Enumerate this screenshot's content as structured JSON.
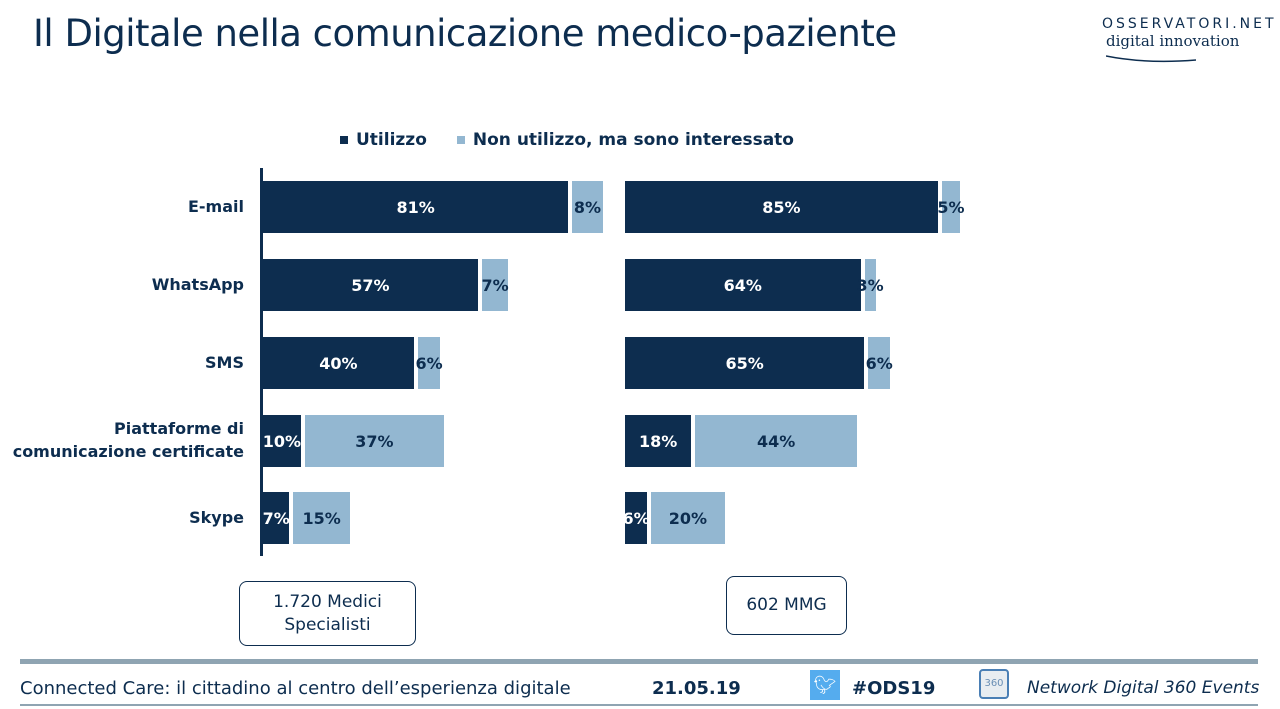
{
  "title": "Il Digitale nella comunicazione medico-paziente",
  "logo": {
    "line1": "OSSERVATORI.NET",
    "line2": "digital innovation"
  },
  "colors": {
    "utilizzo": "#0d2d4f",
    "interessato": "#93b7d1"
  },
  "chart_data": [
    {
      "type": "bar",
      "stacked": true,
      "orientation": "horizontal",
      "sample": "1.720 Medici Specialisti",
      "categories": [
        "E-mail",
        "WhatsApp",
        "SMS",
        "Piattaforme di comunicazione certificate",
        "Skype"
      ],
      "series": [
        {
          "name": "Utilizzo",
          "values": [
            81,
            57,
            40,
            10,
            7
          ]
        },
        {
          "name": "Non utilizzo, ma sono interessato",
          "values": [
            8,
            7,
            6,
            37,
            15
          ]
        }
      ],
      "xlim": [
        0,
        100
      ]
    },
    {
      "type": "bar",
      "stacked": true,
      "orientation": "horizontal",
      "sample": "602 MMG",
      "categories": [
        "E-mail",
        "WhatsApp",
        "SMS",
        "Piattaforme di comunicazione certificate",
        "Skype"
      ],
      "series": [
        {
          "name": "Utilizzo",
          "values": [
            85,
            64,
            65,
            18,
            6
          ]
        },
        {
          "name": "Non utilizzo, ma sono interessato",
          "values": [
            5,
            3,
            6,
            44,
            20
          ]
        }
      ],
      "xlim": [
        0,
        100
      ]
    }
  ],
  "legend": [
    "Utilizzo",
    "Non utilizzo, ma sono interessato"
  ],
  "categories_display": [
    "E-mail",
    "WhatsApp",
    "SMS",
    "Piattaforme di",
    "comunicazione certificate",
    "Skype"
  ],
  "samples": {
    "left_1": "1.720 Medici",
    "left_2": "Specialisti",
    "right": "602 MMG"
  },
  "footer": {
    "event": "Connected Care: il cittadino al centro dell’esperienza digitale",
    "date": "21.05.19",
    "hashtag": "#ODS19",
    "network": "Network Digital 360 Events",
    "badge": "360"
  }
}
